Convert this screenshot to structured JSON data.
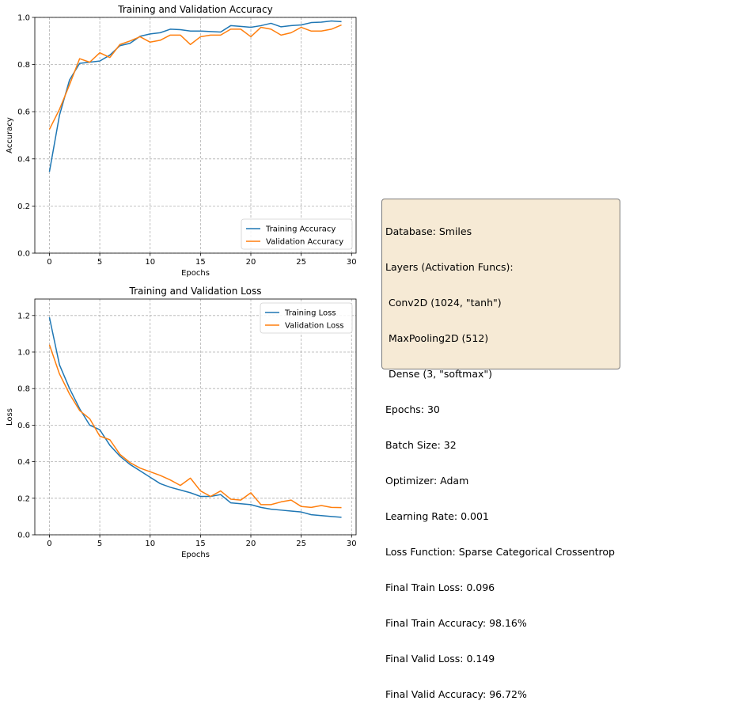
{
  "chart_data": [
    {
      "type": "line",
      "title": "Training and Validation Accuracy",
      "xlabel": "Epochs",
      "ylabel": "Accuracy",
      "xlim": [
        -1.45,
        30.45
      ],
      "ylim": [
        0.0,
        1.0
      ],
      "xticks": [
        0,
        5,
        10,
        15,
        20,
        25,
        30
      ],
      "yticks": [
        0.0,
        0.2,
        0.4,
        0.6,
        0.8,
        1.0
      ],
      "xtick_labels": [
        "0",
        "5",
        "10",
        "15",
        "20",
        "25",
        "30"
      ],
      "ytick_labels": [
        "0.0",
        "0.2",
        "0.4",
        "0.6",
        "0.8",
        "1.0"
      ],
      "grid": true,
      "legend_position": "bottom-right",
      "x": [
        0,
        1,
        2,
        3,
        4,
        5,
        6,
        7,
        8,
        9,
        10,
        11,
        12,
        13,
        14,
        15,
        16,
        17,
        18,
        19,
        20,
        21,
        22,
        23,
        24,
        25,
        26,
        27,
        28,
        29
      ],
      "series": [
        {
          "name": "Training Accuracy",
          "color": "#1f77b4",
          "values": [
            0.345,
            0.585,
            0.735,
            0.805,
            0.81,
            0.815,
            0.84,
            0.88,
            0.89,
            0.92,
            0.93,
            0.935,
            0.95,
            0.948,
            0.942,
            0.942,
            0.94,
            0.938,
            0.965,
            0.962,
            0.958,
            0.965,
            0.975,
            0.96,
            0.965,
            0.968,
            0.978,
            0.98,
            0.985,
            0.982
          ]
        },
        {
          "name": "Validation Accuracy",
          "color": "#ff7f0e",
          "values": [
            0.525,
            0.61,
            0.715,
            0.825,
            0.81,
            0.85,
            0.83,
            0.885,
            0.9,
            0.918,
            0.895,
            0.903,
            0.925,
            0.925,
            0.885,
            0.918,
            0.925,
            0.925,
            0.95,
            0.95,
            0.918,
            0.958,
            0.95,
            0.925,
            0.935,
            0.958,
            0.942,
            0.942,
            0.95,
            0.968
          ]
        }
      ]
    },
    {
      "type": "line",
      "title": "Training and Validation Loss",
      "xlabel": "Epochs",
      "ylabel": "Loss",
      "xlim": [
        -1.45,
        30.45
      ],
      "ylim": [
        0.0,
        1.29
      ],
      "xticks": [
        0,
        5,
        10,
        15,
        20,
        25,
        30
      ],
      "yticks": [
        0.0,
        0.2,
        0.4,
        0.6,
        0.8,
        1.0,
        1.2
      ],
      "xtick_labels": [
        "0",
        "5",
        "10",
        "15",
        "20",
        "25",
        "30"
      ],
      "ytick_labels": [
        "0.0",
        "0.2",
        "0.4",
        "0.6",
        "0.8",
        "1.0",
        "1.2"
      ],
      "grid": true,
      "legend_position": "top-right",
      "x": [
        0,
        1,
        2,
        3,
        4,
        5,
        6,
        7,
        8,
        9,
        10,
        11,
        12,
        13,
        14,
        15,
        16,
        17,
        18,
        19,
        20,
        21,
        22,
        23,
        24,
        25,
        26,
        27,
        28,
        29
      ],
      "series": [
        {
          "name": "Training Loss",
          "color": "#1f77b4",
          "values": [
            1.19,
            0.93,
            0.8,
            0.69,
            0.6,
            0.575,
            0.49,
            0.43,
            0.385,
            0.35,
            0.315,
            0.28,
            0.26,
            0.245,
            0.23,
            0.21,
            0.21,
            0.22,
            0.175,
            0.17,
            0.165,
            0.15,
            0.14,
            0.135,
            0.13,
            0.125,
            0.11,
            0.105,
            0.1,
            0.096
          ]
        },
        {
          "name": "Validation Loss",
          "color": "#ff7f0e",
          "values": [
            1.04,
            0.88,
            0.77,
            0.68,
            0.635,
            0.54,
            0.52,
            0.44,
            0.395,
            0.365,
            0.345,
            0.325,
            0.3,
            0.27,
            0.31,
            0.24,
            0.21,
            0.24,
            0.195,
            0.19,
            0.23,
            0.165,
            0.165,
            0.18,
            0.19,
            0.155,
            0.15,
            0.16,
            0.15,
            0.149
          ]
        }
      ]
    }
  ],
  "info_box": {
    "lines": [
      "Database: Smiles",
      "Layers (Activation Funcs):",
      " Conv2D (1024, \"tanh\")",
      " MaxPooling2D (512)",
      " Dense (3, \"softmax\")",
      "Epochs: 30",
      "Batch Size: 32",
      "Optimizer: Adam",
      "Learning Rate: 0.001",
      "Loss Function: Sparse Categorical Crossentrop",
      "Final Train Loss: 0.096",
      "Final Train Accuracy: 98.16%",
      "Final Valid Loss: 0.149",
      "Final Valid Accuracy: 96.72%"
    ]
  }
}
